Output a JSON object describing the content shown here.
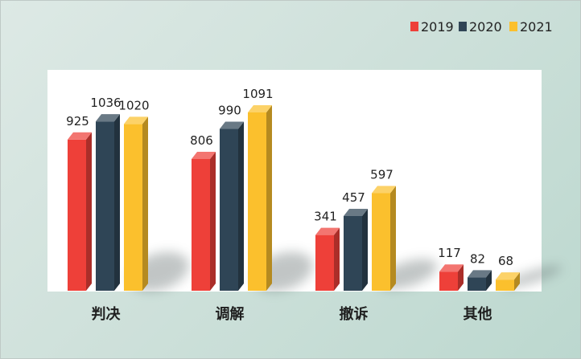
{
  "chart_data": {
    "type": "bar",
    "categories": [
      "判决",
      "调解",
      "撤诉",
      "其他"
    ],
    "series": [
      {
        "name": "2019",
        "values": [
          925,
          806,
          341,
          117
        ]
      },
      {
        "name": "2020",
        "values": [
          1036,
          990,
          457,
          82
        ]
      },
      {
        "name": "2021",
        "values": [
          1020,
          1091,
          597,
          68
        ]
      }
    ],
    "legend": {
      "position": "top-right"
    },
    "grid": false,
    "colors": {
      "2019": "#ee4039",
      "2020": "#2f4556",
      "2021": "#fbc02d"
    },
    "style": "3d-bars-with-shadow"
  }
}
